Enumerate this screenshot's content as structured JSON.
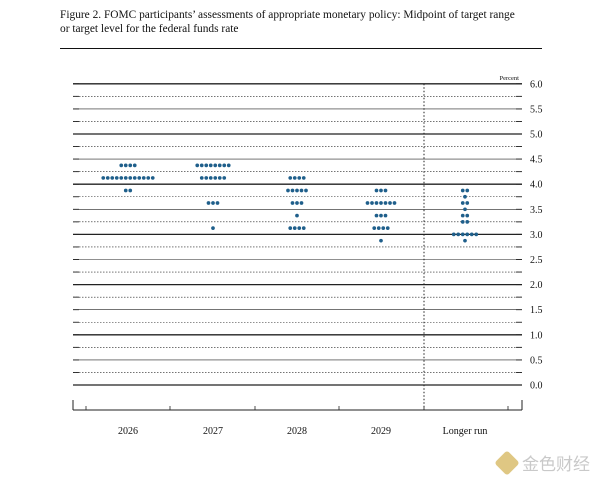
{
  "figure": {
    "title_line1": "Figure 2. FOMC participants’ assessments of appropriate monetary policy: Midpoint of target range",
    "title_line2": "or target level for the federal funds rate"
  },
  "watermark": {
    "text": "金色财经"
  },
  "chart_data": {
    "type": "scatter",
    "unit_label": "Percent",
    "categories": [
      "2026",
      "2027",
      "2028",
      "2029",
      "Longer run"
    ],
    "ylim": [
      -0.5,
      6.0
    ],
    "y_ticks": [
      "6.0",
      "5.5",
      "5.0",
      "4.5",
      "4.0",
      "3.5",
      "3.0",
      "2.5",
      "2.0",
      "1.5",
      "1.0",
      "0.5",
      "0.0"
    ],
    "colors": {
      "dots": "#1f5f8b",
      "grid": "#222222"
    },
    "distributions": [
      {
        "category": "2026",
        "counts": [
          {
            "y": 4.375,
            "n": 4
          },
          {
            "y": 4.125,
            "n": 12
          },
          {
            "y": 3.875,
            "n": 2
          }
        ]
      },
      {
        "category": "2027",
        "counts": [
          {
            "y": 4.375,
            "n": 8
          },
          {
            "y": 4.125,
            "n": 6
          },
          {
            "y": 3.625,
            "n": 3
          },
          {
            "y": 3.125,
            "n": 1
          }
        ]
      },
      {
        "category": "2028",
        "counts": [
          {
            "y": 4.125,
            "n": 4
          },
          {
            "y": 3.875,
            "n": 5
          },
          {
            "y": 3.625,
            "n": 3
          },
          {
            "y": 3.375,
            "n": 1
          },
          {
            "y": 3.125,
            "n": 4
          }
        ]
      },
      {
        "category": "2029",
        "counts": [
          {
            "y": 3.875,
            "n": 3
          },
          {
            "y": 3.625,
            "n": 7
          },
          {
            "y": 3.375,
            "n": 3
          },
          {
            "y": 3.125,
            "n": 4
          },
          {
            "y": 2.875,
            "n": 1
          }
        ]
      },
      {
        "category": "Longer run",
        "counts": [
          {
            "y": 3.875,
            "n": 2
          },
          {
            "y": 3.75,
            "n": 1
          },
          {
            "y": 3.625,
            "n": 2
          },
          {
            "y": 3.5,
            "n": 1
          },
          {
            "y": 3.375,
            "n": 2
          },
          {
            "y": 3.25,
            "n": 2
          },
          {
            "y": 3.0,
            "n": 6
          },
          {
            "y": 2.875,
            "n": 1
          }
        ]
      }
    ]
  }
}
